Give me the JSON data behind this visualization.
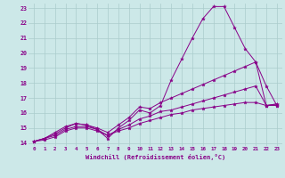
{
  "xlabel": "Windchill (Refroidissement éolien,°C)",
  "bg_color": "#cce8e8",
  "line_color": "#880088",
  "grid_color": "#aacccc",
  "xlim": [
    -0.5,
    23.5
  ],
  "ylim": [
    13.8,
    23.3
  ],
  "xticks": [
    0,
    1,
    2,
    3,
    4,
    5,
    6,
    7,
    8,
    9,
    10,
    11,
    12,
    13,
    14,
    15,
    16,
    17,
    18,
    19,
    20,
    21,
    22,
    23
  ],
  "yticks": [
    14,
    15,
    16,
    17,
    18,
    19,
    20,
    21,
    22,
    23
  ],
  "series": [
    [
      14.1,
      14.3,
      14.5,
      14.9,
      15.1,
      15.1,
      14.9,
      14.3,
      15.0,
      15.5,
      16.2,
      16.0,
      16.5,
      18.2,
      19.6,
      21.0,
      22.3,
      23.1,
      23.1,
      21.7,
      20.3,
      19.4,
      17.8,
      16.5
    ],
    [
      14.1,
      14.3,
      14.6,
      15.0,
      15.3,
      15.2,
      15.0,
      14.7,
      15.2,
      15.7,
      16.4,
      16.3,
      16.7,
      17.0,
      17.3,
      17.6,
      17.9,
      18.2,
      18.5,
      18.8,
      19.1,
      19.4,
      16.5,
      16.5
    ],
    [
      14.1,
      14.3,
      14.7,
      15.1,
      15.3,
      15.2,
      14.9,
      14.5,
      14.9,
      15.2,
      15.6,
      15.8,
      16.1,
      16.2,
      16.4,
      16.6,
      16.8,
      17.0,
      17.2,
      17.4,
      17.6,
      17.8,
      16.5,
      16.6
    ],
    [
      14.1,
      14.2,
      14.4,
      14.8,
      15.0,
      15.0,
      14.8,
      14.5,
      14.8,
      15.0,
      15.3,
      15.5,
      15.7,
      15.9,
      16.0,
      16.2,
      16.3,
      16.4,
      16.5,
      16.6,
      16.7,
      16.7,
      16.5,
      16.6
    ]
  ]
}
